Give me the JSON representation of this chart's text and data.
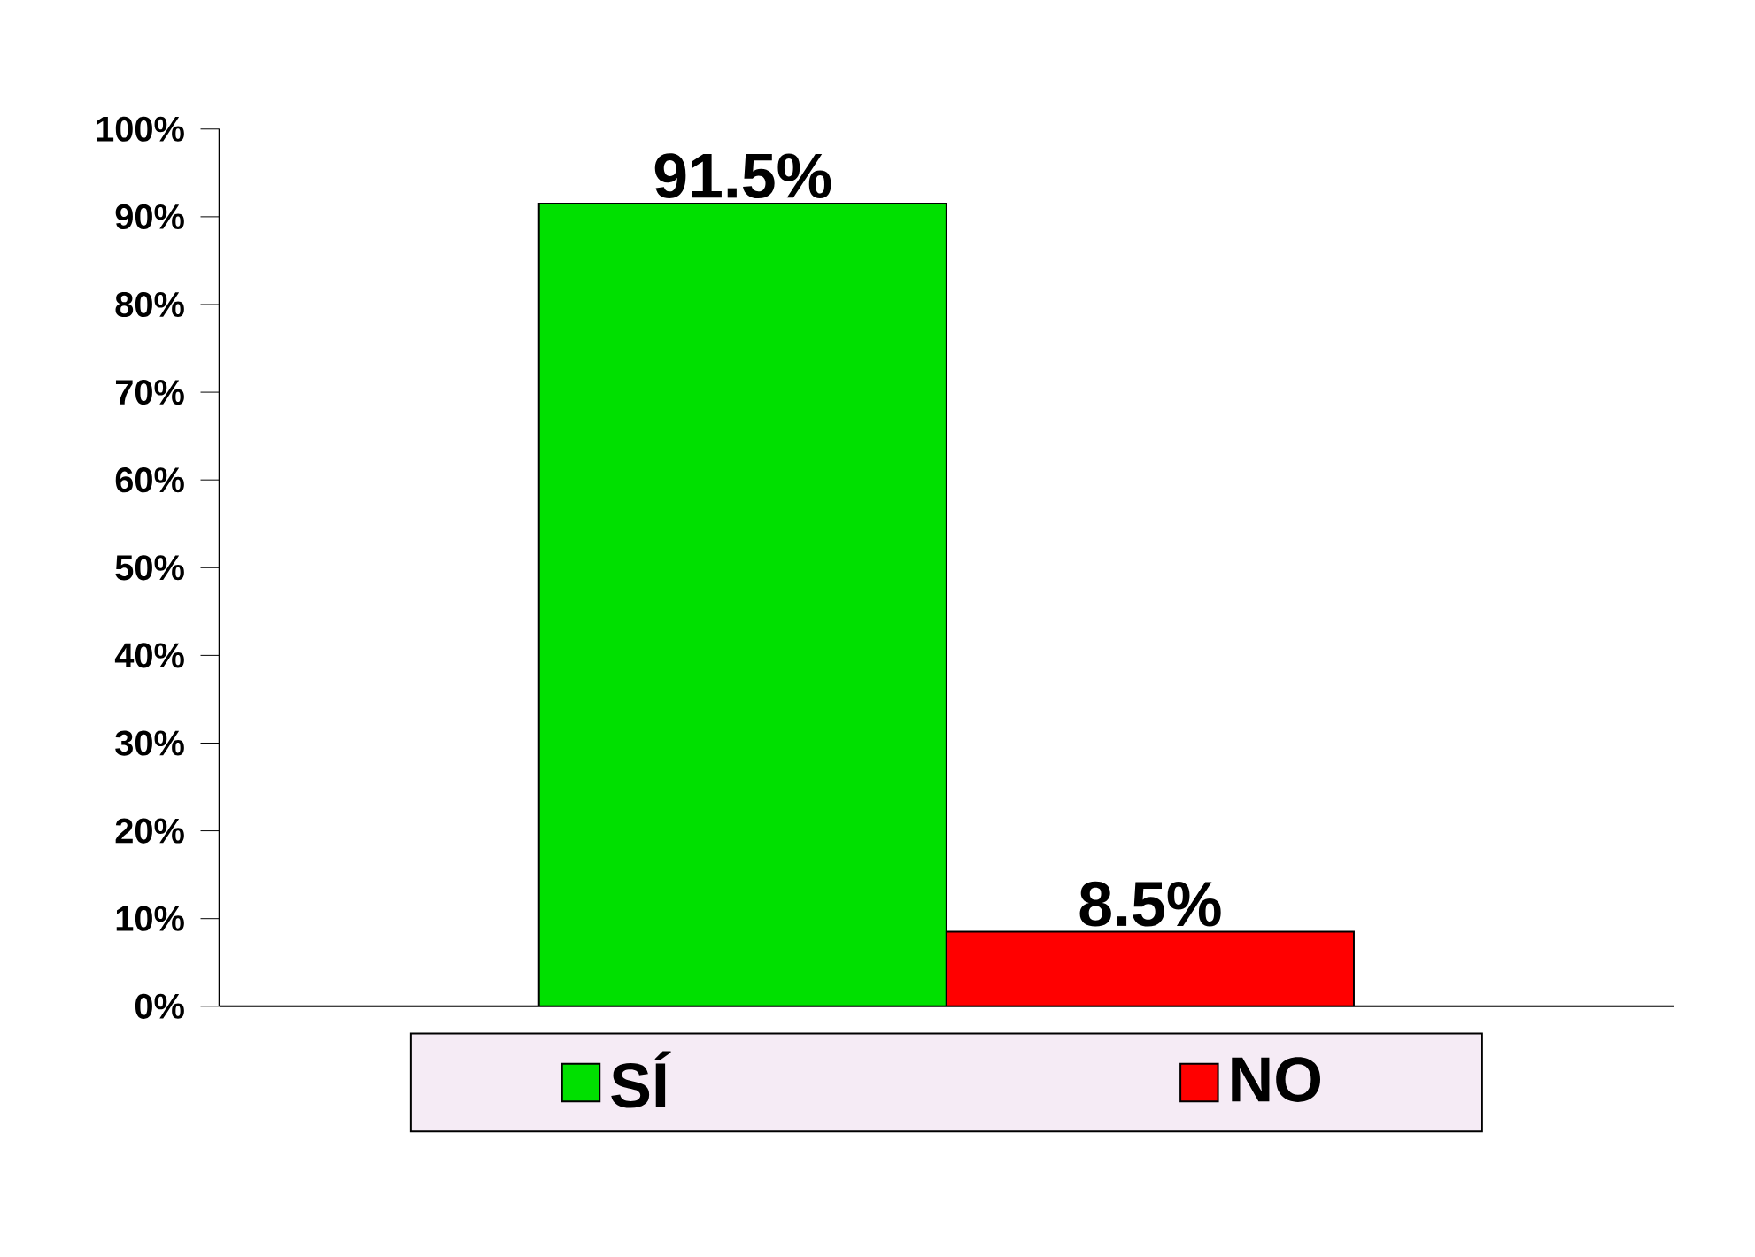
{
  "chart_data": {
    "type": "bar",
    "categories": [
      null
    ],
    "series": [
      {
        "name": "SÍ",
        "color": "#00e000",
        "values": [
          91.5
        ],
        "value_labels": [
          "91.5%"
        ]
      },
      {
        "name": "NO",
        "color": "#ff0000",
        "values": [
          8.5
        ],
        "value_labels": [
          "8.5%"
        ]
      }
    ],
    "ylim": [
      0,
      100
    ],
    "yticks": [
      {
        "value": 0,
        "label": "0%"
      },
      {
        "value": 10,
        "label": "10%"
      },
      {
        "value": 20,
        "label": "20%"
      },
      {
        "value": 30,
        "label": "30%"
      },
      {
        "value": 40,
        "label": "40%"
      },
      {
        "value": 50,
        "label": "50%"
      },
      {
        "value": 60,
        "label": "60%"
      },
      {
        "value": 70,
        "label": "70%"
      },
      {
        "value": 80,
        "label": "80%"
      },
      {
        "value": 90,
        "label": "90%"
      },
      {
        "value": 100,
        "label": "100%"
      }
    ],
    "grid": false,
    "legend": "bottom"
  }
}
